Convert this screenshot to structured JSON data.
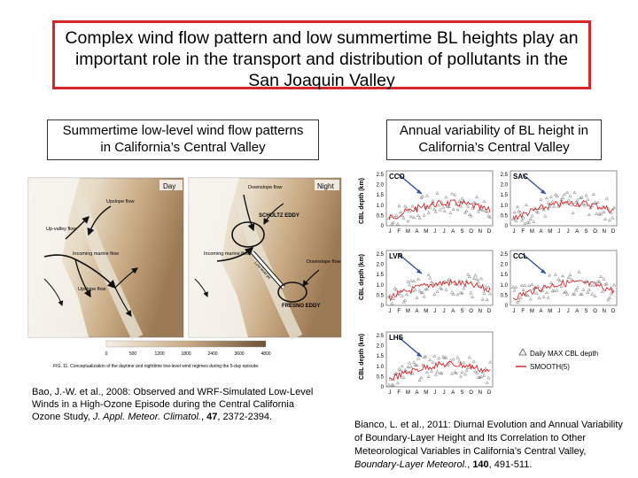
{
  "title": {
    "line1": "Complex wind flow pattern and low summertime BL heights play an",
    "line2": "important role in the transport and distribution of pollutants in the",
    "line3": "San Joaquin Valley"
  },
  "left_heading": {
    "line1": "Summertime low-level wind flow patterns",
    "line2": "in California’s Central Valley"
  },
  "right_heading": {
    "line1": "Annual variability of BL height in",
    "line2": "California’s Central Valley"
  },
  "map_figure": {
    "panel_day": "Day",
    "panel_night": "Night",
    "labels_day": [
      "Upslope flow",
      "Up-valley flow",
      "Incoming marine flow",
      "Upslope flow"
    ],
    "labels_night": [
      "Downslope flow",
      "SCHULTZ EDDY",
      "Incoming marine flow",
      "FRESNO EDDY",
      "Low-level jet",
      "Downslope flow"
    ],
    "scale_ticks": [
      "0",
      "500",
      "1200",
      "1800",
      "2400",
      "3600",
      "4800"
    ],
    "caption": "FIG. 11. Conceptualization of the daytime and nighttime low-level wind regimes during the 5-day episode."
  },
  "left_reference": {
    "text1": "Bao, J.-W. et al., 2008: Observed and WRF-Simulated Low-Level Winds in a High-Ozone Episode during the Central California Ozone Study, ",
    "journal": "J. Appl. Meteor. Climatol.",
    "sep": ", ",
    "volume": "47",
    "pages": ", 2372-2394."
  },
  "cbl_figure": {
    "ylabel": "CBL depth (km)",
    "yticks": [
      "0",
      "0.5",
      "1.0",
      "1.5",
      "2.0",
      "2.5"
    ],
    "months": [
      "J",
      "F",
      "M",
      "A",
      "M",
      "J",
      "J",
      "A",
      "S",
      "O",
      "N",
      "D"
    ],
    "sites": [
      "CCO",
      "SAC",
      "LVR",
      "CCL",
      "LHS"
    ],
    "legend_points": "Daily MAX CBL depth",
    "legend_line": "SMOOTH(5)",
    "colors": {
      "smooth": "#d9262b",
      "points": "#555555",
      "arrow": "#3050a0"
    }
  },
  "right_reference": {
    "text1": "Bianco, L. et al., 2011: Diurnal Evolution and Annual Variability of Boundary-Layer Height and Its Correlation to Other Meteorological Variables in California’s Central Valley, ",
    "journal": "Boundary-Layer Meteorol.",
    "sep": ", ",
    "volume": "140",
    "pages": ", 491-511."
  }
}
